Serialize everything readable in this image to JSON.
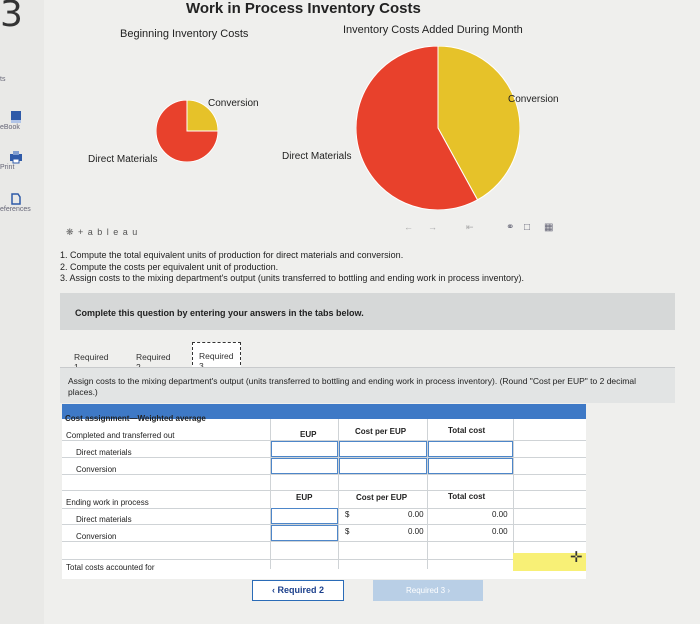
{
  "sidebar": {
    "step_number": "3",
    "items": [
      {
        "label": "ts"
      },
      {
        "label": "eBook"
      },
      {
        "label": "Print"
      },
      {
        "label": "eferences"
      }
    ]
  },
  "chart_data": [
    {
      "type": "pie",
      "title": "Beginning Inventory Costs",
      "labels": [
        "Conversion",
        "Direct Materials"
      ],
      "values": [
        25,
        75
      ],
      "colors": [
        "#e6c229",
        "#e8412c"
      ]
    },
    {
      "type": "pie",
      "title": "Inventory Costs Added During Month",
      "labels": [
        "Conversion",
        "Direct Materials"
      ],
      "values": [
        42,
        58
      ],
      "colors": [
        "#e6c229",
        "#e8412c"
      ]
    }
  ],
  "chart_header": {
    "title": "Work in Process Inventory Costs",
    "left_sub": "Beginning Inventory Costs",
    "right_sub": "Inventory Costs Added During Month"
  },
  "tableau": {
    "brand": "+ a b l e a u"
  },
  "instructions": [
    "1. Compute the total equivalent units of production for direct materials and conversion.",
    "2. Compute the costs per equivalent unit of production.",
    "3. Assign costs to the mixing department's output (units transferred to bottling and ending work in process inventory)."
  ],
  "notice": "Complete this question by entering your answers in the tabs below.",
  "tabs": [
    "Required 1",
    "Required 2",
    "Required 3"
  ],
  "assign_text": "Assign costs to the mixing department's output (units transferred to bottling and ending work in process inventory). (Round \"Cost per EUP\" to 2 decimal places.)",
  "table": {
    "title": "Cost assignment—Weighted average",
    "section1": "Completed and transferred out",
    "dm": "Direct materials",
    "conv": "Conversion",
    "col_eup": "EUP",
    "col_cost": "Cost per EUP",
    "col_total": "Total cost",
    "section2": "Ending work in process",
    "dollar": "$",
    "zero": "0.00",
    "total_label": "Total costs accounted for"
  },
  "buttons": {
    "prev": "Required 2",
    "next": "Required 3"
  }
}
